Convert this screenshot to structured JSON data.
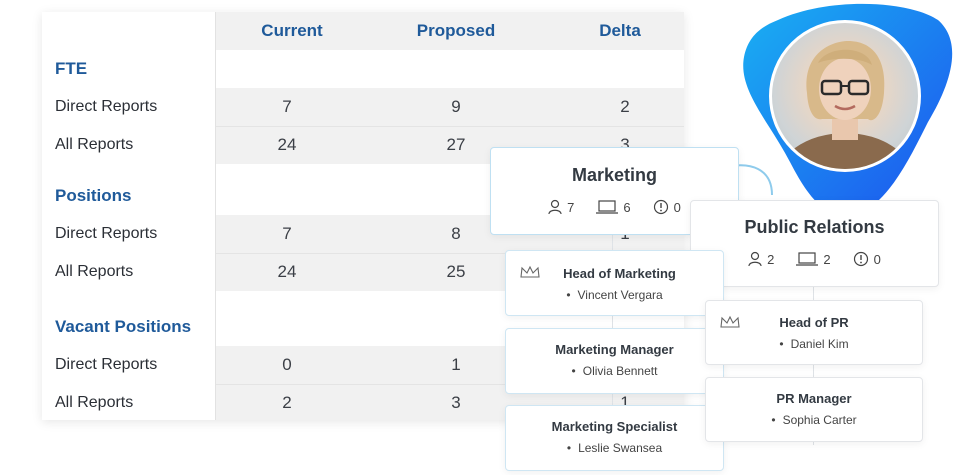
{
  "table": {
    "columns": [
      "Current",
      "Proposed",
      "Delta"
    ],
    "sections": [
      {
        "title": "FTE",
        "rows": [
          {
            "label": "Direct Reports",
            "values": [
              "7",
              "9",
              "2"
            ]
          },
          {
            "label": "All Reports",
            "values": [
              "24",
              "27",
              "3"
            ]
          }
        ]
      },
      {
        "title": "Positions",
        "rows": [
          {
            "label": "Direct Reports",
            "values": [
              "7",
              "8",
              "1"
            ]
          },
          {
            "label": "All Reports",
            "values": [
              "24",
              "25",
              ""
            ]
          }
        ]
      },
      {
        "title": "Vacant Positions",
        "rows": [
          {
            "label": "Direct Reports",
            "values": [
              "0",
              "1",
              ""
            ]
          },
          {
            "label": "All Reports",
            "values": [
              "2",
              "3",
              "1"
            ]
          }
        ]
      }
    ]
  },
  "org": {
    "marketing": {
      "title": "Marketing",
      "people": "7",
      "devices": "6",
      "alerts": "0",
      "roles": [
        {
          "title": "Head of Marketing",
          "person": "Vincent Vergara",
          "head": true
        },
        {
          "title": "Marketing Manager",
          "person": "Olivia Bennett",
          "head": false
        },
        {
          "title": "Marketing Specialist",
          "person": "Leslie Swansea",
          "head": false
        }
      ]
    },
    "pr": {
      "title": "Public Relations",
      "people": "2",
      "devices": "2",
      "alerts": "0",
      "roles": [
        {
          "title": "Head of PR",
          "person": "Daniel Kim",
          "head": true
        },
        {
          "title": "PR Manager",
          "person": "Sophia Carter",
          "head": false
        }
      ]
    }
  },
  "colors": {
    "accent": "#1f5a9a",
    "blob_start": "#1aa8f0",
    "blob_end": "#1d5cf0"
  }
}
